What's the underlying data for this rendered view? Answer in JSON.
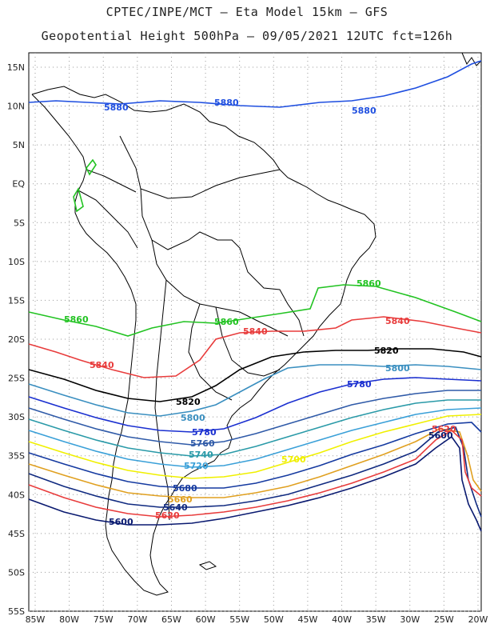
{
  "title_line1": "CPTEC/INPE/MCT –  Eta Model 15km – GFS",
  "title_line2": "Geopotential Height 500hPa – 09/05/2021 12UTC fct=126h",
  "lat_labels": [
    "15N",
    "10N",
    "5N",
    "EQ",
    "5S",
    "10S",
    "15S",
    "20S",
    "25S",
    "30S",
    "35S",
    "40S",
    "45S",
    "50S",
    "55S"
  ],
  "lon_labels": [
    "85W",
    "80W",
    "75W",
    "70W",
    "65W",
    "60W",
    "55W",
    "50W",
    "45W",
    "40W",
    "35W",
    "30W",
    "25W",
    "20W"
  ],
  "colors": {
    "5880": "#1f4fe0",
    "5860": "#22c322",
    "5840": "#e83c3c",
    "5820": "#000000",
    "5800": "#3a8fc0",
    "5780": "#1a2fd0",
    "5760": "#2f5aa8",
    "5740": "#2a9aa8",
    "5720": "#3aa0d8",
    "5700": "#f0f000",
    "5680": "#153aa0",
    "5660": "#e0a020",
    "5640": "#102a80",
    "5620": "#e83c3c",
    "5600": "#0a1a70"
  },
  "contours": [
    {
      "level": "5880",
      "label": "5880"
    },
    {
      "level": "5860",
      "label": "5860"
    },
    {
      "level": "5840",
      "label": "5840"
    },
    {
      "level": "5820",
      "label": "5820"
    },
    {
      "level": "5800",
      "label": "5800"
    },
    {
      "level": "5780",
      "label": "5780"
    },
    {
      "level": "5760",
      "label": "5760"
    },
    {
      "level": "5740",
      "label": "5740"
    },
    {
      "level": "5720",
      "label": "5720"
    },
    {
      "level": "5700",
      "label": "5700"
    },
    {
      "level": "5680",
      "label": "5680"
    },
    {
      "level": "5660",
      "label": "5660"
    },
    {
      "level": "5640",
      "label": "5640"
    },
    {
      "level": "5620",
      "label": "5620"
    },
    {
      "level": "5600",
      "label": "5600"
    }
  ]
}
